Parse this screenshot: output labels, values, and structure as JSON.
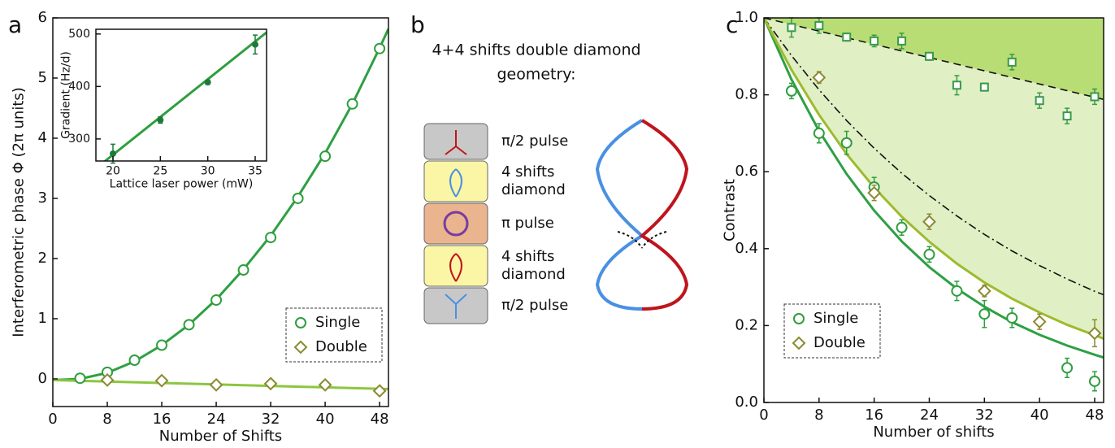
{
  "chart_data": [
    {
      "panel": "a",
      "type": "scatter",
      "xlabel": "Number of Shifts",
      "ylabel": "Interferometric phase Φ (2π units)",
      "xlim": [
        0,
        49.3
      ],
      "ylim": [
        -0.46,
        6
      ],
      "xticks": [
        0,
        8,
        16,
        24,
        32,
        40,
        48
      ],
      "yticks": [
        0,
        1,
        2,
        3,
        4,
        5,
        6
      ],
      "legend": "lower right",
      "series": [
        {
          "name": "Single",
          "color": "#2e9e3e",
          "marker": "circle",
          "x": [
            4,
            8,
            12,
            16,
            20,
            24,
            28,
            32,
            36,
            40,
            44,
            48
          ],
          "values": [
            0.01,
            0.11,
            0.31,
            0.56,
            0.9,
            1.31,
            1.81,
            2.35,
            3.0,
            3.7,
            4.57,
            5.49
          ],
          "errors": [
            0.04,
            0.04,
            0.04,
            0.04,
            0.04,
            0.04,
            0.04,
            0.04,
            0.04,
            0.04,
            0.04,
            0.04
          ]
        },
        {
          "name": "Double",
          "color": "#8a8a30",
          "marker": "diamond",
          "x": [
            8,
            16,
            24,
            32,
            40,
            48
          ],
          "values": [
            -0.02,
            -0.03,
            -0.1,
            -0.08,
            -0.1,
            -0.2
          ],
          "errors": [
            0.04,
            0.04,
            0.04,
            0.04,
            0.04,
            0.04
          ]
        }
      ],
      "fits": [
        {
          "color": "#2ea043",
          "x": [
            0,
            4,
            8,
            12,
            16,
            20,
            24,
            28,
            32,
            36,
            40,
            44,
            48,
            49.3
          ],
          "values": [
            -0.02,
            0.0,
            0.1,
            0.29,
            0.56,
            0.9,
            1.32,
            1.82,
            2.38,
            3.03,
            3.75,
            4.57,
            5.5,
            5.82
          ]
        },
        {
          "color": "#8dc63f",
          "x": [
            0,
            49.3
          ],
          "values": [
            -0.02,
            -0.17
          ]
        }
      ]
    },
    {
      "type": "scatter",
      "xlabel": "Lattice laser power (mW)",
      "ylabel": "Gradient (Hz/d)",
      "xlim": [
        18.2,
        36.2
      ],
      "ylim": [
        258,
        509
      ],
      "xticks": [
        20,
        25,
        30,
        35
      ],
      "yticks": [
        300,
        400,
        500
      ],
      "series": [
        {
          "color": "#1f7a3a",
          "marker": "dot",
          "x": [
            20,
            25,
            30,
            35
          ],
          "values": [
            272,
            336,
            408,
            480
          ],
          "errors": [
            18,
            6,
            4,
            18
          ]
        }
      ],
      "fits": [
        {
          "color": "#2e9e3e",
          "x": [
            18.2,
            36.2
          ],
          "values": [
            244,
            503
          ]
        }
      ]
    },
    {
      "panel": "c",
      "type": "scatter",
      "xlabel": "Number of shifts",
      "ylabel": "Contrast",
      "xlim": [
        0,
        49.3
      ],
      "ylim": [
        0,
        1
      ],
      "xticks": [
        0,
        8,
        16,
        24,
        32,
        40,
        48
      ],
      "yticks": [
        {
          "value": 0,
          "label": "0.0"
        },
        0.2,
        0.4,
        0.6,
        0.8,
        {
          "value": 1,
          "label": "1.0"
        }
      ],
      "legend": "lower left",
      "series": [
        {
          "name": "Single",
          "color": "#2e9e3e",
          "marker": "circle",
          "x": [
            4,
            8,
            12,
            16,
            20,
            24,
            28,
            32,
            36,
            44,
            48
          ],
          "values": [
            0.81,
            0.7,
            0.675,
            0.56,
            0.455,
            0.385,
            0.29,
            0.23,
            0.22,
            0.09,
            0.055
          ],
          "errors": [
            0.02,
            0.025,
            0.03,
            0.025,
            0.02,
            0.02,
            0.025,
            0.035,
            0.025,
            0.025,
            0.025
          ]
        },
        {
          "name": "Double",
          "color": "#8a8a30",
          "marker": "diamond",
          "x": [
            8,
            16,
            24,
            32,
            40,
            48
          ],
          "values": [
            0.845,
            0.545,
            0.47,
            0.29,
            0.21,
            0.18
          ],
          "errors": [
            0.015,
            0.02,
            0.02,
            0.015,
            0.02,
            0.035
          ]
        },
        {
          "color": "#3a9a4a",
          "marker": "square",
          "x": [
            4,
            8,
            12,
            16,
            20,
            24,
            28,
            32,
            36,
            40,
            44,
            48
          ],
          "values": [
            0.975,
            0.98,
            0.95,
            0.94,
            0.94,
            0.9,
            0.825,
            0.82,
            0.885,
            0.785,
            0.745,
            0.795
          ],
          "errors": [
            0.025,
            0.02,
            0.01,
            0.015,
            0.02,
            0.01,
            0.025,
            0.01,
            0.02,
            0.02,
            0.02,
            0.02
          ]
        }
      ],
      "fits": [
        {
          "color": "#2ea043",
          "x": [
            0,
            4,
            8,
            12,
            16,
            20,
            24,
            28,
            32,
            36,
            40,
            44,
            48,
            49.3
          ],
          "values": [
            1,
            0.84,
            0.706,
            0.594,
            0.499,
            0.419,
            0.352,
            0.296,
            0.249,
            0.209,
            0.176,
            0.148,
            0.124,
            0.117
          ]
        },
        {
          "color": "#111111",
          "linestyle": "dashdot",
          "x": [
            0,
            4,
            8,
            12,
            16,
            20,
            24,
            28,
            32,
            36,
            40,
            44,
            48,
            49.3
          ],
          "values": [
            1,
            0.902,
            0.813,
            0.733,
            0.661,
            0.596,
            0.538,
            0.485,
            0.437,
            0.394,
            0.356,
            0.321,
            0.289,
            0.28
          ]
        },
        {
          "color": "#9dbb2e",
          "fill": "#e1efc4",
          "x": [
            0,
            4,
            8,
            12,
            16,
            20,
            24,
            28,
            32,
            36,
            40,
            44,
            48,
            49.3
          ],
          "values": [
            1,
            0.865,
            0.748,
            0.646,
            0.559,
            0.483,
            0.418,
            0.361,
            0.312,
            0.27,
            0.234,
            0.202,
            0.175,
            0.166
          ]
        },
        {
          "color": "#111111",
          "linestyle": "dashed",
          "fill": "#b8dd74",
          "x": [
            0,
            49.3
          ],
          "values": [
            1,
            0.788
          ]
        }
      ]
    }
  ],
  "diagram": {
    "panel": "b",
    "title": [
      "4+4 shifts double diamond",
      "geometry:"
    ],
    "steps": [
      [
        "π/2 pulse"
      ],
      [
        "4 shifts",
        "diamond"
      ],
      [
        "π pulse"
      ],
      [
        "4 shifts",
        "diamond"
      ],
      [
        "π/2 pulse"
      ]
    ]
  }
}
